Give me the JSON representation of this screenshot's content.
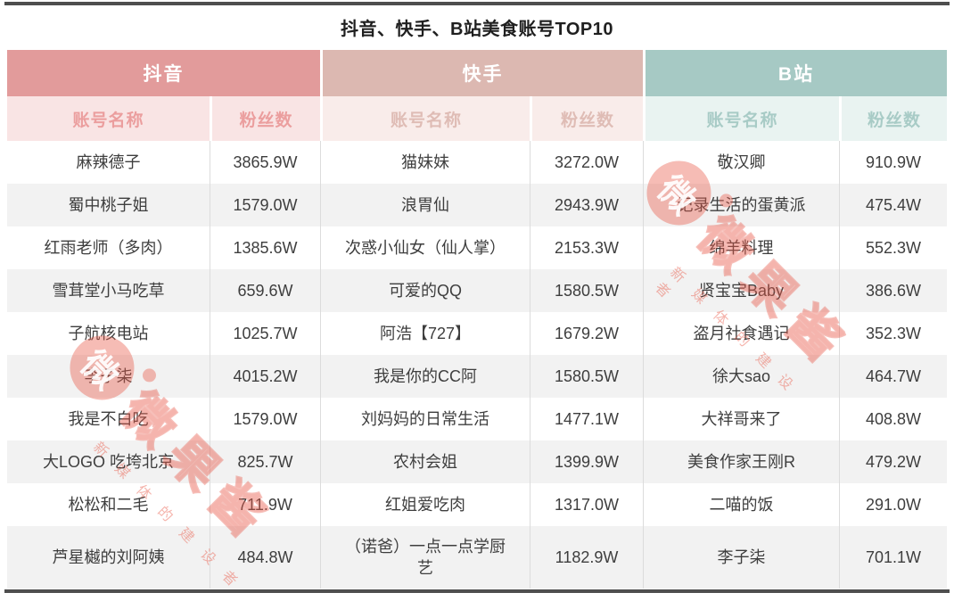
{
  "title": "抖音、快手、B站美食账号TOP10",
  "colors": {
    "douyin_header": "#e29b9b",
    "kuaishou_header": "#dcb8b1",
    "bilibili_header": "#a6c9c4",
    "douyin_subheader_bg": "#f9e4e4",
    "kuaishou_subheader_bg": "#f9ecea",
    "bilibili_subheader_bg": "#e9f3f1",
    "row_stripe": "#f2f2f2",
    "rule": "#4e4e4e",
    "watermark": "#e85846"
  },
  "watermark": {
    "brand": "微果酱",
    "logo_char": "微",
    "tagline": "新媒体的建设者"
  },
  "chart_data": {
    "type": "table",
    "title": "抖音、快手、B站美食账号TOP10",
    "unit": "W",
    "column_headers": [
      "账号名称",
      "粉丝数"
    ],
    "groups": [
      {
        "platform": "抖音",
        "rows": [
          [
            "麻辣德子",
            "3865.9W"
          ],
          [
            "蜀中桃子姐",
            "1579.0W"
          ],
          [
            "红雨老师（多肉）",
            "1385.6W"
          ],
          [
            "雪茸堂小马吃草",
            "659.6W"
          ],
          [
            "子航核电站",
            "1025.7W"
          ],
          [
            "李子柒",
            "4015.2W"
          ],
          [
            "我是不白吃",
            "1579.0W"
          ],
          [
            "大LOGO 吃垮北京",
            "825.7W"
          ],
          [
            "松松和二毛",
            "711.9W"
          ],
          [
            "芦星樾的刘阿姨",
            "484.8W"
          ]
        ]
      },
      {
        "platform": "快手",
        "rows": [
          [
            "猫妹妹",
            "3272.0W"
          ],
          [
            "浪胃仙",
            "2943.9W"
          ],
          [
            "次惑小仙女（仙人掌）",
            "2153.3W"
          ],
          [
            "可爱的QQ",
            "1580.5W"
          ],
          [
            "阿浩【727】",
            "1679.2W"
          ],
          [
            "我是你的CC阿",
            "1580.5W"
          ],
          [
            "刘妈妈的日常生活",
            "1477.1W"
          ],
          [
            "农村会姐",
            "1399.9W"
          ],
          [
            "红姐爱吃肉",
            "1317.0W"
          ],
          [
            "（诺爸）一点一点学厨艺",
            "1182.9W"
          ]
        ]
      },
      {
        "platform": "B站",
        "rows": [
          [
            "敬汉卿",
            "910.9W"
          ],
          [
            "记录生活的蛋黄派",
            "475.4W"
          ],
          [
            "绵羊料理",
            "552.3W"
          ],
          [
            "贤宝宝Baby",
            "386.6W"
          ],
          [
            "盗月社食遇记",
            "352.3W"
          ],
          [
            "徐大sao",
            "464.7W"
          ],
          [
            "大祥哥来了",
            "408.8W"
          ],
          [
            "美食作家王刚R",
            "479.2W"
          ],
          [
            "二喵的饭",
            "291.0W"
          ],
          [
            "李子柒",
            "701.1W"
          ]
        ]
      }
    ]
  }
}
